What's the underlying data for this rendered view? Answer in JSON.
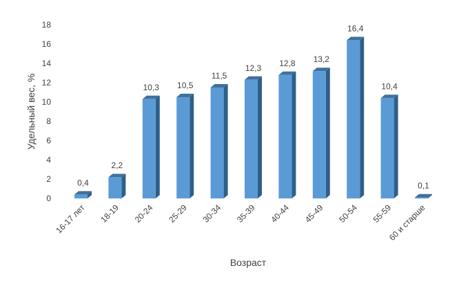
{
  "chart_data": {
    "type": "bar",
    "title": "",
    "xlabel": "Возраст",
    "ylabel": "Удельный вес, %",
    "ylim": [
      0,
      18
    ],
    "yticks": [
      0,
      2,
      4,
      6,
      8,
      10,
      12,
      14,
      16,
      18
    ],
    "ytick_labels": [
      "0",
      "2",
      "4",
      "6",
      "8",
      "10",
      "12",
      "14",
      "16",
      "18"
    ],
    "categories": [
      "16-17 лет",
      "18-19",
      "20-24",
      "25-29",
      "30-34",
      "35-39",
      "40-44",
      "45-49",
      "50-54",
      "55-59",
      "60 и старше"
    ],
    "values": [
      0.4,
      2.2,
      10.3,
      10.5,
      11.5,
      12.3,
      12.8,
      13.2,
      16.4,
      10.4,
      0.1
    ],
    "value_labels": [
      "0,4",
      "2,2",
      "10,3",
      "10,5",
      "11,5",
      "12,3",
      "12,8",
      "13,2",
      "16,4",
      "10,4",
      "0,1"
    ],
    "style": "3d-column",
    "grid": false,
    "legend": "none",
    "colors": {
      "bar_front": "#5B9BD5",
      "bar_side": "#2E5F8A",
      "bar_top": "#41719C"
    }
  }
}
